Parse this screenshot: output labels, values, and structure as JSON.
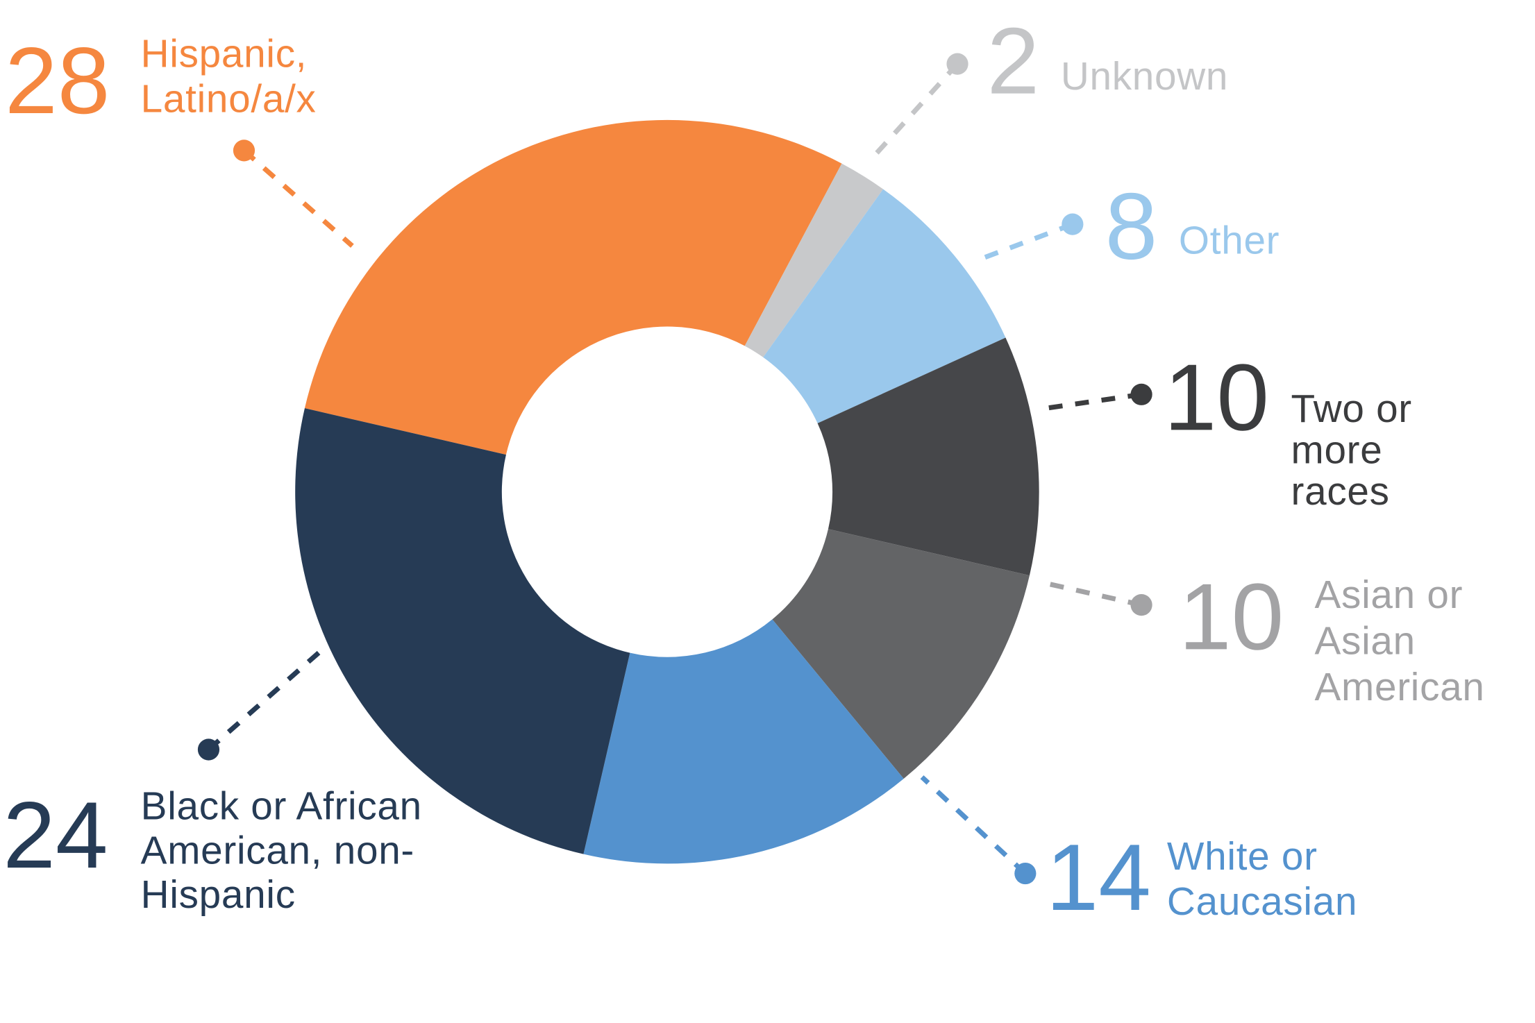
{
  "chart_data": {
    "type": "donut",
    "categories": [
      "Hispanic, Latino/a/x",
      "Unknown",
      "Other",
      "Two or more races",
      "Asian or Asian American",
      "White or Caucasian",
      "Black or African American, non-Hispanic"
    ],
    "values": [
      28,
      2,
      8,
      10,
      10,
      14,
      24
    ],
    "colors": [
      "#f5873f",
      "#c8c9cb",
      "#9ac8ec",
      "#46474a",
      "#636466",
      "#5492ce",
      "#263b55"
    ],
    "label_colors": [
      "#f5873f",
      "#c4c5c7",
      "#9ac8ec",
      "#3b3c3e",
      "#a3a3a5",
      "#5492ce",
      "#263b55"
    ]
  }
}
